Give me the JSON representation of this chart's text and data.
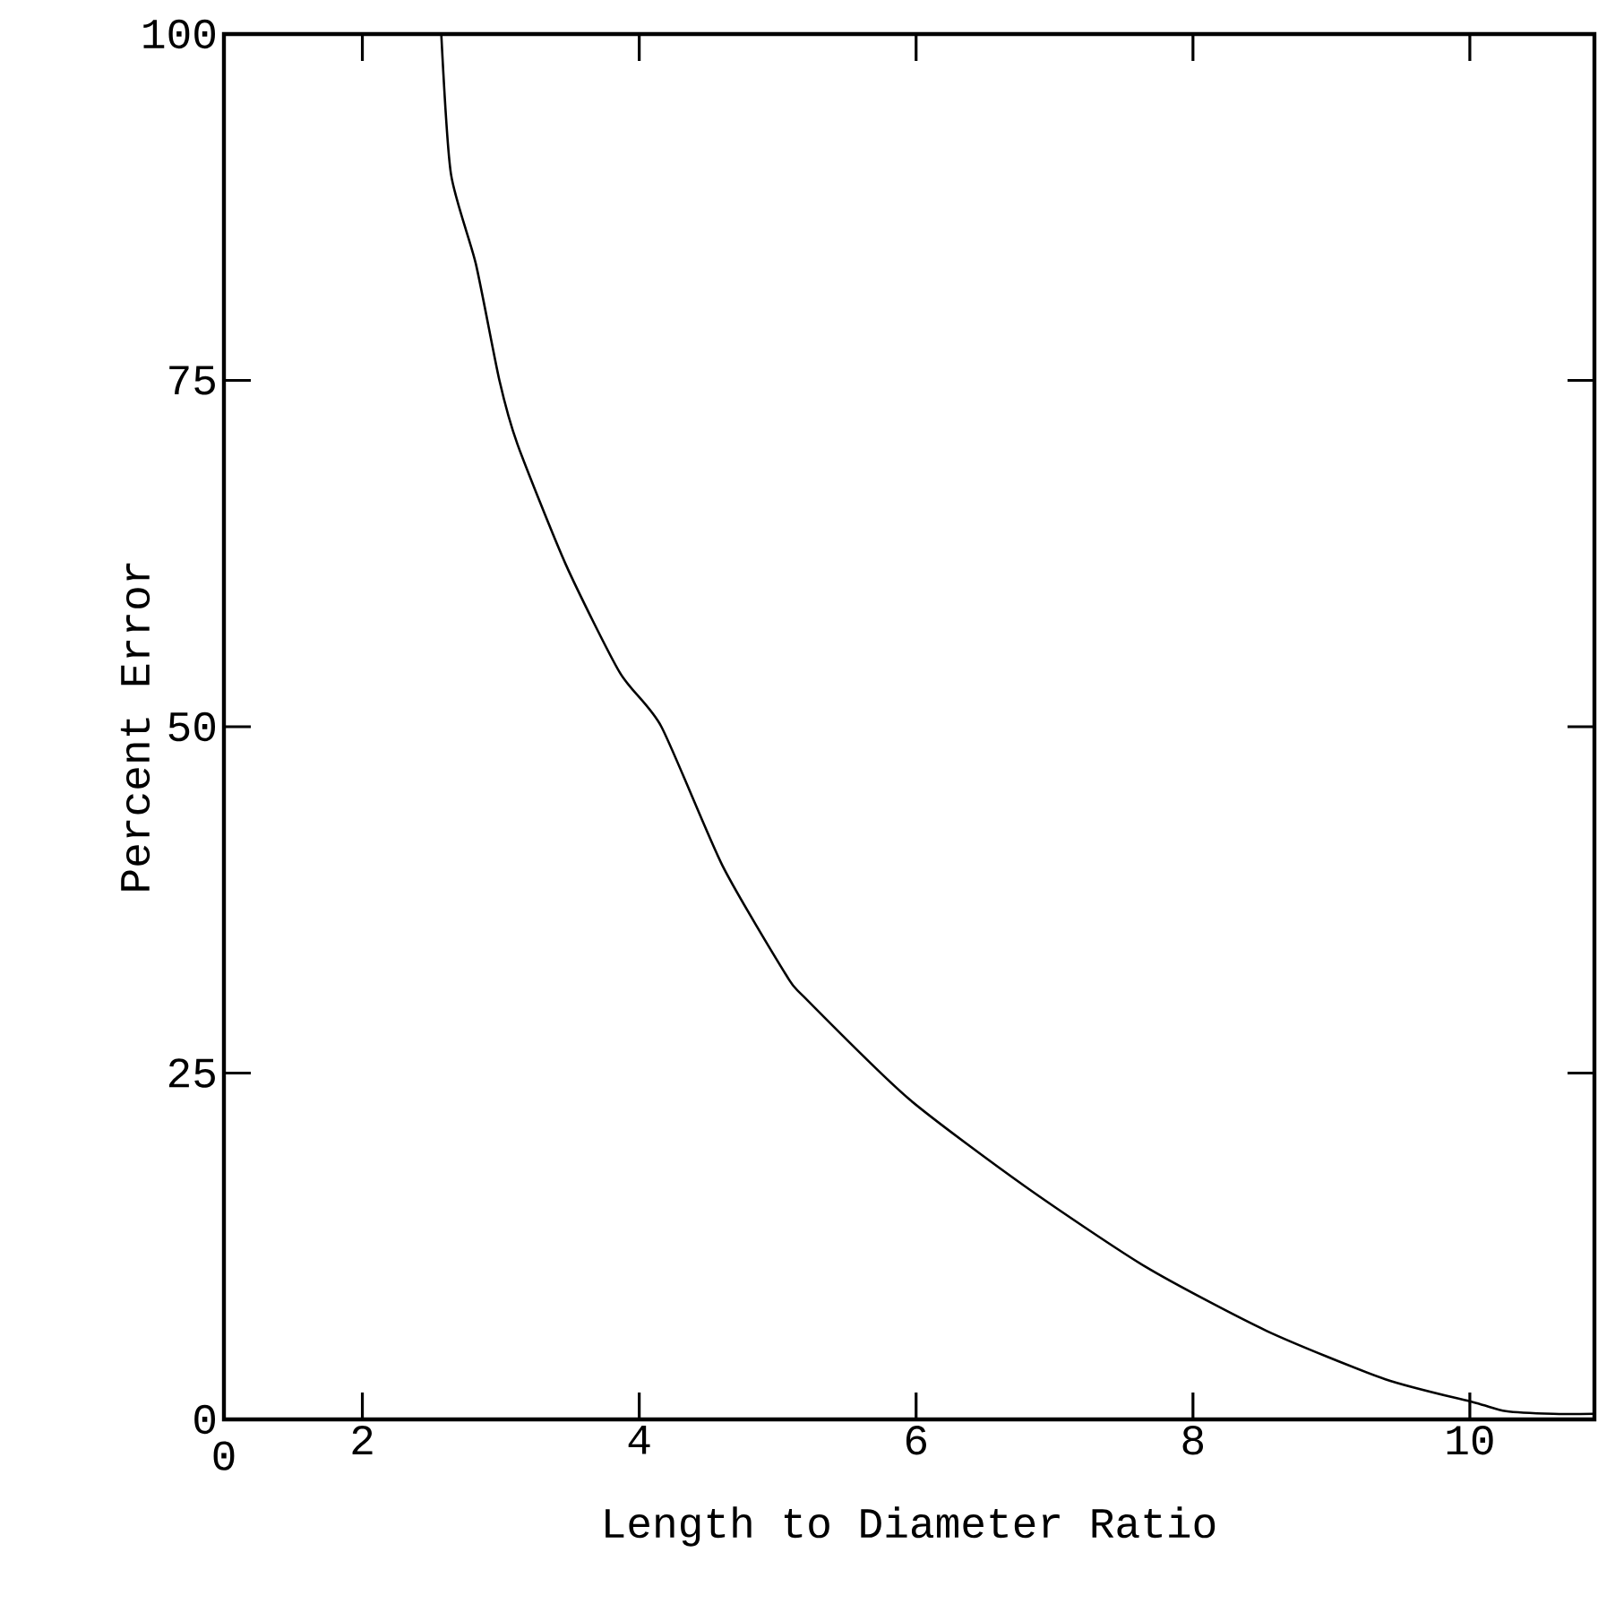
{
  "chart_data": {
    "type": "line",
    "xlabel": "Length to Diameter Ratio",
    "ylabel": "Percent Error",
    "xlim": [
      1,
      10.9
    ],
    "ylim": [
      0,
      100
    ],
    "xticks": [
      2,
      4,
      6,
      8,
      10
    ],
    "annotations": [
      "0"
    ],
    "yticks": [
      0,
      25,
      50,
      75,
      100
    ],
    "grid": false,
    "marker": "none",
    "line_style": "solid",
    "series": [
      {
        "color": "#000000",
        "x": [
          2.57,
          2.64,
          2.82,
          2.99,
          3.12,
          3.47,
          3.86,
          4.16,
          4.6,
          5.06,
          5.19,
          5.94,
          6.79,
          7.66,
          8.53,
          9.39,
          10.04,
          10.26,
          10.6,
          10.9
        ],
        "values": [
          100,
          89.9,
          83.4,
          75,
          70.4,
          61.7,
          53.9,
          50,
          40,
          32.1,
          30.5,
          23.2,
          16.8,
          11,
          6.4,
          2.9,
          1.2,
          0.6,
          0.4,
          0.4
        ]
      }
    ]
  }
}
